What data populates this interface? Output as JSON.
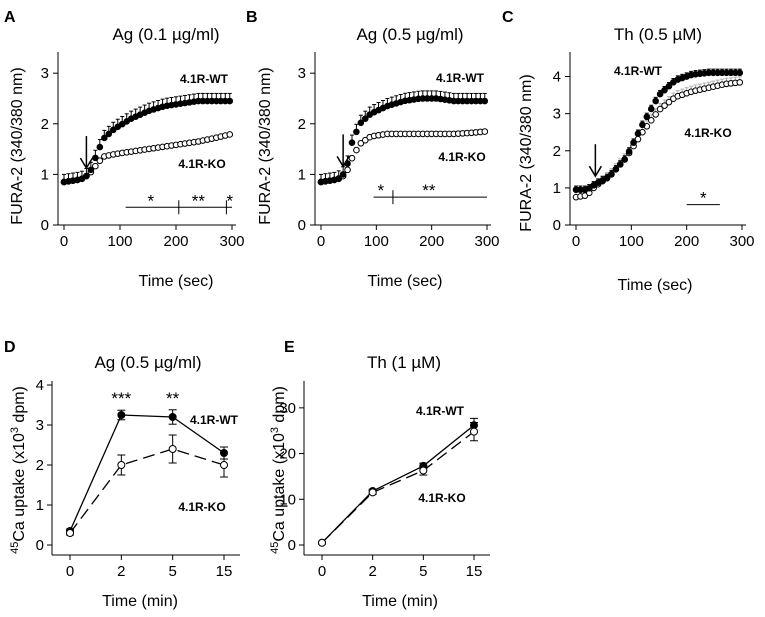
{
  "figure": {
    "background": "#ffffff",
    "ink": "#000000",
    "ko_fill": "#ffffff",
    "error_gray": "#b0b0b0"
  },
  "chart_data": [
    {
      "panel": "A",
      "type": "line",
      "title": "Ag (0.1 µg/ml)",
      "xlabel": "Time  (sec)",
      "ylabel": "FURA-2 (340/380 nm)",
      "xlim": [
        0,
        300
      ],
      "ylim": [
        0,
        3.3
      ],
      "xticks": [
        0,
        100,
        200,
        300
      ],
      "yticks": [
        0,
        1,
        2,
        3
      ],
      "stim_time": 40,
      "series": [
        {
          "name": "4.1R-WT",
          "style": "filled",
          "err": 0.15,
          "pts": [
            [
              0,
              0.85
            ],
            [
              30,
              0.9
            ],
            [
              45,
              1.0
            ],
            [
              55,
              1.3
            ],
            [
              70,
              1.7
            ],
            [
              90,
              1.9
            ],
            [
              120,
              2.1
            ],
            [
              150,
              2.25
            ],
            [
              180,
              2.35
            ],
            [
              210,
              2.4
            ],
            [
              240,
              2.45
            ],
            [
              270,
              2.45
            ],
            [
              300,
              2.45
            ]
          ]
        },
        {
          "name": "4.1R-KO",
          "style": "open",
          "err": 0.03,
          "pts": [
            [
              0,
              0.85
            ],
            [
              30,
              0.9
            ],
            [
              45,
              1.0
            ],
            [
              55,
              1.15
            ],
            [
              70,
              1.35
            ],
            [
              90,
              1.4
            ],
            [
              120,
              1.45
            ],
            [
              150,
              1.5
            ],
            [
              180,
              1.55
            ],
            [
              210,
              1.6
            ],
            [
              240,
              1.65
            ],
            [
              270,
              1.72
            ],
            [
              300,
              1.8
            ]
          ]
        }
      ],
      "significance": {
        "y": 0.35,
        "breaks": [
          110,
          205,
          290,
          300
        ],
        "marks": [
          {
            "x": 155,
            "text": "*"
          },
          {
            "x": 240,
            "text": "**"
          },
          {
            "x": 296,
            "text": "*"
          }
        ]
      },
      "labels": {
        "wt": "4.1R-WT",
        "ko": "4.1R-KO"
      }
    },
    {
      "panel": "B",
      "type": "line",
      "title": "Ag (0.5 µg/ml)",
      "xlabel": "Time  (sec)",
      "ylabel": "FURA-2 (340/380 nm)",
      "xlim": [
        0,
        300
      ],
      "ylim": [
        0,
        3.3
      ],
      "xticks": [
        0,
        100,
        200,
        300
      ],
      "yticks": [
        0,
        1,
        2,
        3
      ],
      "stim_time": 40,
      "series": [
        {
          "name": "4.1R-WT",
          "style": "filled",
          "err": 0.15,
          "pts": [
            [
              0,
              0.85
            ],
            [
              30,
              0.9
            ],
            [
              45,
              1.05
            ],
            [
              55,
              1.6
            ],
            [
              70,
              2.0
            ],
            [
              90,
              2.2
            ],
            [
              120,
              2.35
            ],
            [
              150,
              2.45
            ],
            [
              180,
              2.5
            ],
            [
              210,
              2.5
            ],
            [
              240,
              2.45
            ],
            [
              270,
              2.45
            ],
            [
              300,
              2.45
            ]
          ]
        },
        {
          "name": "4.1R-KO",
          "style": "open",
          "err": 0.05,
          "pts": [
            [
              0,
              0.85
            ],
            [
              30,
              0.9
            ],
            [
              45,
              1.0
            ],
            [
              55,
              1.3
            ],
            [
              70,
              1.6
            ],
            [
              90,
              1.75
            ],
            [
              120,
              1.8
            ],
            [
              150,
              1.8
            ],
            [
              180,
              1.8
            ],
            [
              210,
              1.8
            ],
            [
              240,
              1.8
            ],
            [
              270,
              1.82
            ],
            [
              300,
              1.85
            ]
          ]
        }
      ],
      "significance": {
        "y": 0.55,
        "breaks": [
          95,
          130,
          300
        ],
        "marks": [
          {
            "x": 108,
            "text": "*"
          },
          {
            "x": 195,
            "text": "**"
          }
        ]
      },
      "labels": {
        "wt": "4.1R-WT",
        "ko": "4.1R-KO"
      }
    },
    {
      "panel": "C",
      "type": "line",
      "title": "Th (0.5 µM)",
      "xlabel": "Time  (sec)",
      "ylabel": "FURA-2 (340/380 nm)",
      "xlim": [
        0,
        300
      ],
      "ylim": [
        0,
        4.5
      ],
      "xticks": [
        0,
        100,
        200,
        300
      ],
      "yticks": [
        0,
        1,
        2,
        3,
        4
      ],
      "stim_time": 35,
      "series": [
        {
          "name": "4.1R-WT",
          "style": "filled",
          "err": 0.1,
          "pts": [
            [
              0,
              0.95
            ],
            [
              20,
              0.95
            ],
            [
              35,
              1.1
            ],
            [
              60,
              1.3
            ],
            [
              90,
              1.8
            ],
            [
              120,
              2.7
            ],
            [
              150,
              3.5
            ],
            [
              180,
              3.9
            ],
            [
              210,
              4.05
            ],
            [
              240,
              4.1
            ],
            [
              270,
              4.1
            ],
            [
              300,
              4.1
            ]
          ]
        },
        {
          "name": "4.1R-KO",
          "style": "open",
          "err": 0.15,
          "pts": [
            [
              0,
              0.75
            ],
            [
              20,
              0.8
            ],
            [
              35,
              1.05
            ],
            [
              60,
              1.3
            ],
            [
              90,
              1.8
            ],
            [
              120,
              2.5
            ],
            [
              150,
              3.1
            ],
            [
              180,
              3.45
            ],
            [
              210,
              3.6
            ],
            [
              240,
              3.7
            ],
            [
              270,
              3.8
            ],
            [
              300,
              3.85
            ]
          ]
        }
      ],
      "significance": {
        "y": 0.55,
        "breaks": [
          200,
          260
        ],
        "marks": [
          {
            "x": 230,
            "text": "*"
          }
        ]
      },
      "labels": {
        "wt": "4.1R-WT",
        "ko": "4.1R-KO"
      }
    },
    {
      "panel": "D",
      "type": "line",
      "title": "Ag (0.5 µg/ml)",
      "xlabel": "Time (min)",
      "ylabel_main": "Ca uptake (x10",
      "ylabel_pre": "45",
      "ylabel_exp": "3",
      "ylabel_post": " dpm)",
      "categories": [
        "0",
        "2",
        "5",
        "15"
      ],
      "ylim": [
        0,
        4
      ],
      "yticks": [
        0,
        1,
        2,
        3,
        4
      ],
      "series": [
        {
          "name": "4.1R-WT",
          "style": "filled",
          "dash": "solid",
          "values": [
            0.35,
            3.25,
            3.2,
            2.3
          ],
          "err": [
            0.05,
            0.12,
            0.18,
            0.15
          ]
        },
        {
          "name": "4.1R-KO",
          "style": "open",
          "dash": "dashed",
          "values": [
            0.3,
            2.0,
            2.4,
            2.0
          ],
          "err": [
            0.05,
            0.25,
            0.35,
            0.3
          ]
        }
      ],
      "annotations": [
        {
          "cat": 1,
          "text": "***"
        },
        {
          "cat": 2,
          "text": "**"
        }
      ],
      "labels": {
        "wt": "4.1R-WT",
        "ko": "4.1R-KO"
      }
    },
    {
      "panel": "E",
      "type": "line",
      "title": "Th (1 µM)",
      "xlabel": "Time (min)",
      "ylabel_main": "Ca uptake (x10",
      "ylabel_pre": "45",
      "ylabel_exp": "3",
      "ylabel_post": " dpm)",
      "categories": [
        "0",
        "2",
        "5",
        "15"
      ],
      "ylim": [
        0,
        35
      ],
      "yticks": [
        0,
        10,
        20,
        30
      ],
      "series": [
        {
          "name": "4.1R-WT",
          "style": "filled",
          "dash": "solid",
          "values": [
            0.5,
            11.8,
            17.3,
            26.2
          ],
          "err": [
            0.2,
            0.4,
            0.6,
            1.5
          ]
        },
        {
          "name": "4.1R-KO",
          "style": "open",
          "dash": "dashed",
          "values": [
            0.5,
            11.5,
            16.3,
            24.8
          ],
          "err": [
            0.2,
            0.4,
            1.0,
            2.0
          ]
        }
      ],
      "annotations": [],
      "labels": {
        "wt": "4.1R-WT",
        "ko": "4.1R-KO"
      }
    }
  ]
}
